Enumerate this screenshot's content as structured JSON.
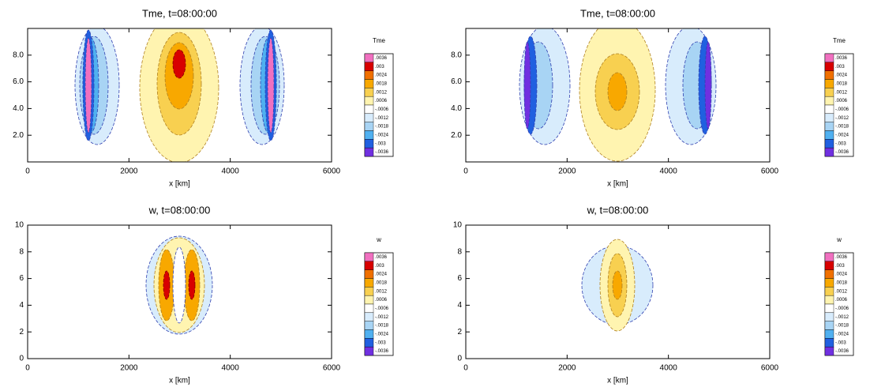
{
  "chart_data": [
    {
      "type": "contour",
      "title": "Tme, t=08:00:00",
      "xlabel": "x [km]",
      "xlim": [
        0,
        6000
      ],
      "xticks": [
        0,
        2000,
        4000,
        6000
      ],
      "ylim": [
        0,
        10
      ],
      "yticks": [
        {
          "value": 2,
          "label": "2.0"
        },
        {
          "value": 4,
          "label": "4.0"
        },
        {
          "value": 6,
          "label": "6.0"
        },
        {
          "value": 8,
          "label": "8.0"
        }
      ],
      "colorbar": {
        "title": "Tme",
        "colors": [
          "#f070c0",
          "#d80000",
          "#f07000",
          "#f8a800",
          "#f8d050",
          "#fff4b0",
          "#ffffff",
          "#d8ecfc",
          "#a8d4f4",
          "#50b0f0",
          "#2060e0",
          "#7030e0"
        ],
        "levels": [
          {
            "value": 0.0036,
            "label": ".0036"
          },
          {
            "value": 0.003,
            "label": ".003"
          },
          {
            "value": 0.0024,
            "label": ".0024"
          },
          {
            "value": 0.0018,
            "label": ".0018"
          },
          {
            "value": 0.0012,
            "label": ".0012"
          },
          {
            "value": 0.0006,
            "label": ".0006"
          },
          {
            "value": -0.0006,
            "label": "-.0006"
          },
          {
            "value": -0.0012,
            "label": "-.0012"
          },
          {
            "value": -0.0018,
            "label": "-.0018"
          },
          {
            "value": -0.0024,
            "label": "-.0024"
          },
          {
            "value": -0.003,
            "label": "-.003"
          },
          {
            "value": -0.0036,
            "label": "-.0036"
          }
        ]
      }
    },
    {
      "type": "contour",
      "title": "Tme, t=08:00:00",
      "xlabel": "x [km]",
      "xlim": [
        0,
        6000
      ],
      "xticks": [
        0,
        2000,
        4000,
        6000
      ],
      "ylim": [
        0,
        10
      ],
      "yticks": [
        {
          "value": 2,
          "label": "2.0"
        },
        {
          "value": 4,
          "label": "4.0"
        },
        {
          "value": 6,
          "label": "6.0"
        },
        {
          "value": 8,
          "label": "8.0"
        }
      ],
      "colorbar": {
        "title": "Tme",
        "colors": [
          "#f070c0",
          "#d80000",
          "#f07000",
          "#f8a800",
          "#f8d050",
          "#fff4b0",
          "#ffffff",
          "#d8ecfc",
          "#a8d4f4",
          "#50b0f0",
          "#2060e0",
          "#7030e0"
        ],
        "levels": [
          {
            "value": 0.0036,
            "label": ".0036"
          },
          {
            "value": 0.003,
            "label": ".003"
          },
          {
            "value": 0.0024,
            "label": ".0024"
          },
          {
            "value": 0.0018,
            "label": ".0018"
          },
          {
            "value": 0.0012,
            "label": ".0012"
          },
          {
            "value": 0.0006,
            "label": ".0006"
          },
          {
            "value": -0.0006,
            "label": "-.0006"
          },
          {
            "value": -0.0012,
            "label": "-.0012"
          },
          {
            "value": -0.0018,
            "label": "-.0018"
          },
          {
            "value": -0.0024,
            "label": "-.0024"
          },
          {
            "value": -0.003,
            "label": "-.003"
          },
          {
            "value": -0.0036,
            "label": "-.0036"
          }
        ]
      }
    },
    {
      "type": "contour",
      "title": "w, t=08:00:00",
      "xlabel": "x [km]",
      "xlim": [
        0,
        6000
      ],
      "xticks": [
        0,
        2000,
        4000,
        6000
      ],
      "ylim": [
        0,
        10
      ],
      "yticks": [
        0,
        2,
        4,
        6,
        8,
        10
      ],
      "colorbar": {
        "title": "w",
        "colors": [
          "#f070c0",
          "#d80000",
          "#f07000",
          "#f8a800",
          "#f8d050",
          "#fff4b0",
          "#ffffff",
          "#d8ecfc",
          "#a8d4f4",
          "#50b0f0",
          "#2060e0",
          "#7030e0"
        ],
        "levels": [
          {
            "value": 0.0036,
            "label": ".0036"
          },
          {
            "value": 0.003,
            "label": ".003"
          },
          {
            "value": 0.0024,
            "label": ".0024"
          },
          {
            "value": 0.0018,
            "label": ".0018"
          },
          {
            "value": 0.0012,
            "label": ".0012"
          },
          {
            "value": 0.0006,
            "label": ".0006"
          },
          {
            "value": -0.0006,
            "label": "-.0006"
          },
          {
            "value": -0.0012,
            "label": "-.0012"
          },
          {
            "value": -0.0018,
            "label": "-.0018"
          },
          {
            "value": -0.0024,
            "label": "-.0024"
          },
          {
            "value": -0.003,
            "label": "-.003"
          },
          {
            "value": -0.0036,
            "label": "-.0036"
          }
        ]
      }
    },
    {
      "type": "contour",
      "title": "w, t=08:00:00",
      "xlabel": "x [km]",
      "xlim": [
        0,
        6000
      ],
      "xticks": [
        0,
        2000,
        4000,
        6000
      ],
      "ylim": [
        0,
        10
      ],
      "yticks": [
        0,
        2,
        4,
        6,
        8,
        10
      ],
      "colorbar": {
        "title": "w",
        "colors": [
          "#f070c0",
          "#d80000",
          "#f07000",
          "#f8a800",
          "#f8d050",
          "#fff4b0",
          "#ffffff",
          "#d8ecfc",
          "#a8d4f4",
          "#50b0f0",
          "#2060e0",
          "#7030e0"
        ],
        "levels": [
          {
            "value": 0.0036,
            "label": ".0036"
          },
          {
            "value": 0.003,
            "label": ".003"
          },
          {
            "value": 0.0024,
            "label": ".0024"
          },
          {
            "value": 0.0018,
            "label": ".0018"
          },
          {
            "value": 0.0012,
            "label": ".0012"
          },
          {
            "value": 0.0006,
            "label": ".0006"
          },
          {
            "value": -0.0006,
            "label": "-.0006"
          },
          {
            "value": -0.0012,
            "label": "-.0012"
          },
          {
            "value": -0.0018,
            "label": "-.0018"
          },
          {
            "value": -0.0024,
            "label": "-.0024"
          },
          {
            "value": -0.003,
            "label": "-.003"
          },
          {
            "value": -0.0036,
            "label": "-.0036"
          }
        ]
      }
    }
  ]
}
